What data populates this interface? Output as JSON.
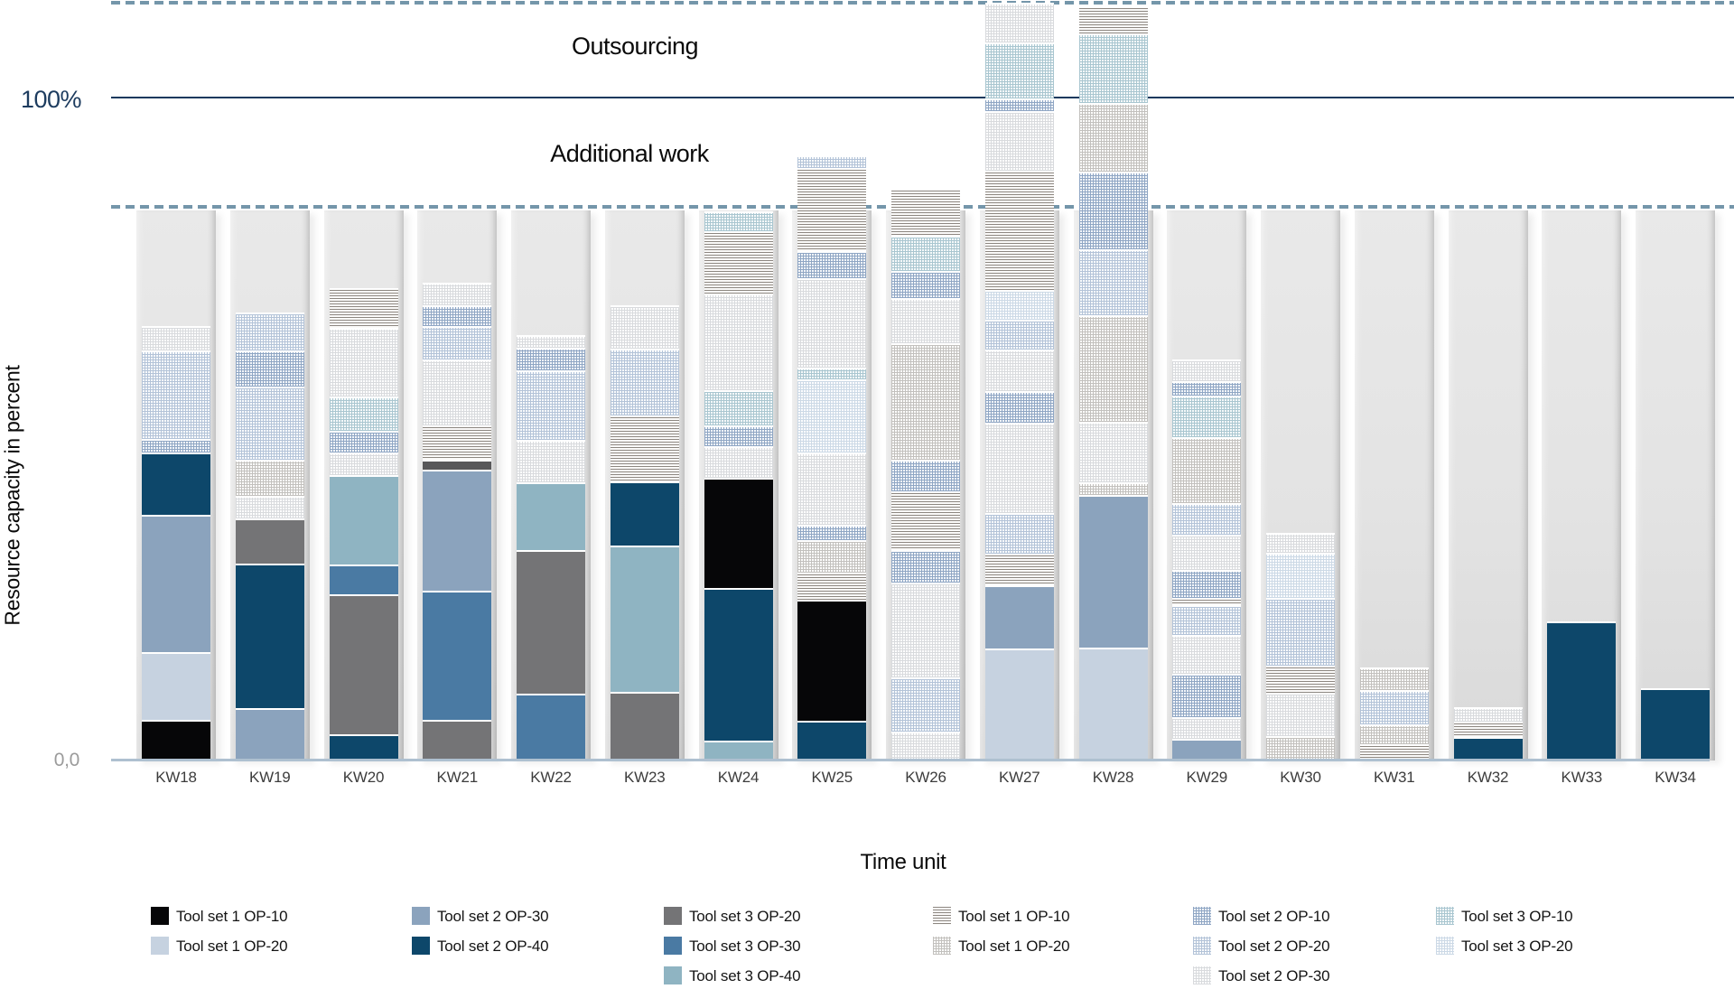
{
  "labels": {
    "outsourcing": "Outsourcing",
    "additional_work": "Additional work",
    "y_100": "100%",
    "y_zero": "0,0",
    "y_axis": "Resource capacity in percent",
    "x_axis": "Time unit"
  },
  "colors": {
    "solid_100_line": "#16395d",
    "dashed_line": "#7496aa",
    "baseline": "#aec0d0",
    "capacity_column": "#e3e3e3",
    "y100_label": "#1d3c5f",
    "zero_label": "#9b9b9b",
    "tick_label": "#3c3c3c"
  },
  "styles": {
    "s1": {
      "label": "Tool set 1 OP-10",
      "type": "solid",
      "color": "#060608"
    },
    "s2": {
      "label": "Tool set 1 OP-20",
      "type": "solid",
      "color": "#c6d2e0"
    },
    "s3": {
      "label": "Tool set 2 OP-30",
      "type": "solid",
      "color": "#8ba3bd"
    },
    "s4": {
      "label": "Tool set 2 OP-40",
      "type": "solid",
      "color": "#0d476a"
    },
    "s5": {
      "label": "Tool set 3 OP-20",
      "type": "solid",
      "color": "#747476"
    },
    "s6": {
      "label": "Tool set 3 OP-30",
      "type": "solid",
      "color": "#4a7aa3"
    },
    "s7": {
      "label": "Tool set 3 OP-40",
      "type": "solid",
      "color": "#8fb4c2"
    },
    "s5d": {
      "label": "Tool set 3 OP-20",
      "type": "solid",
      "color": "#58585a"
    },
    "h1": {
      "label": "Tool set 1 OP-10",
      "type": "stripes",
      "color": "#8d8781",
      "bg": "#fbfaf9"
    },
    "h2": {
      "label": "Tool set 1 OP-20",
      "type": "grid",
      "color": "#c2c0bd",
      "bg": "#fdfdfc"
    },
    "h3": {
      "label": "Tool set 2 OP-10",
      "type": "grid",
      "color": "#8fa6c4",
      "bg": "#f3f6fa"
    },
    "h4": {
      "label": "Tool set 2 OP-20",
      "type": "grid",
      "color": "#b3c3d8",
      "bg": "#f8fafc"
    },
    "h5": {
      "label": "Tool set 2 OP-30",
      "type": "grid",
      "color": "#d8dadd",
      "bg": "#fefefe"
    },
    "h6": {
      "label": "Tool set 3 OP-10",
      "type": "grid",
      "color": "#a9c6d0",
      "bg": "#f5f9fa"
    },
    "h7": {
      "label": "Tool set 3 OP-20",
      "type": "grid",
      "color": "#ccd9e6",
      "bg": "#fbfcfe"
    }
  },
  "legend": {
    "columns": [
      {
        "items": [
          {
            "style": "s1",
            "label": "Tool set 1 OP-10"
          },
          {
            "style": "s2",
            "label": "Tool set 1 OP-20"
          }
        ]
      },
      {
        "items": [
          {
            "style": "s3",
            "label": "Tool set 2 OP-30"
          },
          {
            "style": "s4",
            "label": "Tool set 2 OP-40"
          }
        ]
      },
      {
        "items": [
          {
            "style": "s5",
            "label": "Tool set 3 OP-20"
          },
          {
            "style": "s6",
            "label": "Tool set 3 OP-30"
          },
          {
            "style": "s7",
            "label": "Tool set 3 OP-40"
          }
        ]
      },
      {
        "items": [
          {
            "style": "h1",
            "label": "Tool set 1 OP-10"
          },
          {
            "style": "h2",
            "label": "Tool set 1 OP-20"
          }
        ]
      },
      {
        "items": [
          {
            "style": "h3",
            "label": "Tool set 2 OP-10"
          },
          {
            "style": "h4",
            "label": "Tool set 2 OP-20"
          },
          {
            "style": "h5",
            "label": "Tool set 2 OP-30"
          }
        ]
      },
      {
        "items": [
          {
            "style": "h6",
            "label": "Tool set 3 OP-10"
          },
          {
            "style": "h7",
            "label": "Tool set 3 OP-20"
          }
        ]
      }
    ]
  },
  "chart_data": {
    "type": "bar",
    "stacked": true,
    "title": "",
    "xlabel": "Time unit",
    "ylabel": "Resource capacity in percent",
    "unit": "percent of resource capacity",
    "ylim": [
      0,
      115
    ],
    "grid": false,
    "legend_position": "bottom",
    "normal_capacity_band_pct": 83,
    "reference_lines": [
      {
        "pct": 100,
        "style": "solid",
        "label": "100%"
      },
      {
        "pct": 114.3,
        "style": "dashed",
        "zone_label": "Outsourcing"
      },
      {
        "pct": 83.3,
        "style": "dashed",
        "zone_label": "Additional work"
      }
    ],
    "categories": [
      "KW18",
      "KW19",
      "KW20",
      "KW21",
      "KW22",
      "KW23",
      "KW24",
      "KW25",
      "KW26",
      "KW27",
      "KW28",
      "KW29",
      "KW30",
      "KW31",
      "KW32",
      "KW33",
      "KW34"
    ],
    "bars": [
      {
        "category": "KW18",
        "segments": [
          [
            "s1",
            6.1
          ],
          [
            "s2",
            10.2
          ],
          [
            "s3",
            20.8
          ],
          [
            "s4",
            9.4
          ],
          [
            "h3",
            2.0
          ],
          [
            "h4",
            13.3
          ],
          [
            "h5",
            3.7
          ]
        ]
      },
      {
        "category": "KW19",
        "segments": [
          [
            "s3",
            7.9
          ],
          [
            "s4",
            21.8
          ],
          [
            "s5",
            6.8
          ],
          [
            "h5",
            3.4
          ],
          [
            "h2",
            5.5
          ],
          [
            "h4",
            11.0
          ],
          [
            "h3",
            5.5
          ],
          [
            "h4",
            5.7
          ]
        ]
      },
      {
        "category": "KW20",
        "segments": [
          [
            "s4",
            4.0
          ],
          [
            "s5",
            21.1
          ],
          [
            "s6",
            4.5
          ],
          [
            "s7",
            13.5
          ],
          [
            "h5",
            3.3
          ],
          [
            "h3",
            3.3
          ],
          [
            "h6",
            5.2
          ],
          [
            "h5",
            10.3
          ],
          [
            "h1",
            6.0
          ]
        ]
      },
      {
        "category": "KW21",
        "segments": [
          [
            "s5",
            6.1
          ],
          [
            "s6",
            19.5
          ],
          [
            "s3",
            18.3
          ],
          [
            "s5d",
            1.4
          ],
          [
            "h1",
            5.2
          ],
          [
            "h5",
            10.0
          ],
          [
            "h4",
            5.0
          ],
          [
            "h3",
            3.2
          ],
          [
            "h5",
            3.4
          ]
        ]
      },
      {
        "category": "KW22",
        "segments": [
          [
            "s6",
            10.1
          ],
          [
            "s5",
            21.6
          ],
          [
            "s7",
            10.2
          ],
          [
            "h5",
            6.5
          ],
          [
            "h4",
            10.5
          ],
          [
            "h3",
            3.4
          ],
          [
            "h5",
            1.9
          ]
        ]
      },
      {
        "category": "KW23",
        "segments": [
          [
            "s5",
            10.4
          ],
          [
            "s7",
            22.0
          ],
          [
            "s4",
            9.7
          ],
          [
            "h1",
            10.0
          ],
          [
            "h4",
            10.0
          ],
          [
            "h5",
            6.5
          ]
        ]
      },
      {
        "category": "KW24",
        "segments": [
          [
            "s7",
            3.0
          ],
          [
            "s4",
            23.0
          ],
          [
            "s1",
            16.6
          ],
          [
            "h5",
            4.8
          ],
          [
            "h3",
            3.1
          ],
          [
            "h6",
            5.4
          ],
          [
            "h5",
            14.5
          ],
          [
            "h1",
            9.5
          ],
          [
            "h6",
            2.9
          ]
        ]
      },
      {
        "category": "KW25",
        "segments": [
          [
            "s4",
            6.0
          ],
          [
            "s1",
            18.3
          ],
          [
            "h1",
            4.1
          ],
          [
            "h2",
            4.8
          ],
          [
            "h3",
            2.3
          ],
          [
            "h5",
            11.0
          ],
          [
            "h7",
            11.0
          ],
          [
            "h6",
            1.8
          ],
          [
            "h5",
            13.5
          ],
          [
            "h3",
            4.1
          ],
          [
            "h1",
            12.5
          ],
          [
            "h4",
            1.9
          ]
        ]
      },
      {
        "category": "KW26",
        "segments": [
          [
            "h5",
            4.4
          ],
          [
            "h4",
            8.2
          ],
          [
            "h5",
            14.3
          ],
          [
            "h3",
            4.8
          ],
          [
            "h1",
            8.9
          ],
          [
            "h3",
            4.8
          ],
          [
            "h2",
            17.5
          ],
          [
            "h5",
            6.8
          ],
          [
            "h3",
            4.1
          ],
          [
            "h6",
            5.4
          ],
          [
            "h1",
            7.1
          ]
        ]
      },
      {
        "category": "KW27",
        "segments": [
          [
            "s2",
            16.9
          ],
          [
            "s3",
            9.5
          ],
          [
            "h1",
            4.8
          ],
          [
            "h4",
            6.1
          ],
          [
            "h5",
            13.6
          ],
          [
            "h3",
            4.8
          ],
          [
            "h5",
            6.3
          ],
          [
            "h4",
            4.5
          ],
          [
            "h7",
            4.5
          ],
          [
            "h1",
            18.0
          ],
          [
            "h5",
            9.0
          ],
          [
            "h3",
            1.8
          ],
          [
            "h6",
            8.5
          ],
          [
            "h5",
            6.0
          ]
        ]
      },
      {
        "category": "KW28",
        "segments": [
          [
            "s2",
            17.0
          ],
          [
            "s3",
            23.0
          ],
          [
            "h2",
            2.0
          ],
          [
            "h5",
            9.1
          ],
          [
            "h2",
            16.1
          ],
          [
            "h4",
            9.9
          ],
          [
            "h3",
            11.7
          ],
          [
            "h2",
            10.4
          ],
          [
            "h6",
            10.5
          ],
          [
            "h1",
            4.1
          ]
        ]
      },
      {
        "category": "KW29",
        "segments": [
          [
            "s3",
            3.3
          ],
          [
            "h5",
            3.3
          ],
          [
            "h3",
            6.5
          ],
          [
            "h5",
            5.8
          ],
          [
            "h4",
            4.5
          ],
          [
            "h1",
            1.1
          ],
          [
            "h3",
            4.2
          ],
          [
            "h5",
            5.3
          ],
          [
            "h4",
            4.8
          ],
          [
            "h2",
            10.0
          ],
          [
            "h6",
            6.2
          ],
          [
            "h3",
            2.2
          ],
          [
            "h5",
            3.3
          ]
        ]
      },
      {
        "category": "KW30",
        "segments": [
          [
            "h2",
            3.7
          ],
          [
            "h5",
            6.5
          ],
          [
            "h1",
            4.1
          ],
          [
            "h4",
            10.2
          ],
          [
            "h7",
            6.8
          ],
          [
            "h5",
            3.0
          ]
        ]
      },
      {
        "category": "KW31",
        "segments": [
          [
            "h1",
            2.5
          ],
          [
            "h2",
            2.9
          ],
          [
            "h4",
            5.2
          ],
          [
            "h2",
            3.5
          ]
        ]
      },
      {
        "category": "KW32",
        "segments": [
          [
            "s4",
            3.5
          ],
          [
            "h1",
            2.3
          ],
          [
            "h5",
            2.2
          ]
        ]
      },
      {
        "category": "KW33",
        "segments": [
          [
            "s4",
            21.0
          ]
        ]
      },
      {
        "category": "KW34",
        "segments": [
          [
            "s4",
            10.9
          ]
        ]
      }
    ]
  }
}
